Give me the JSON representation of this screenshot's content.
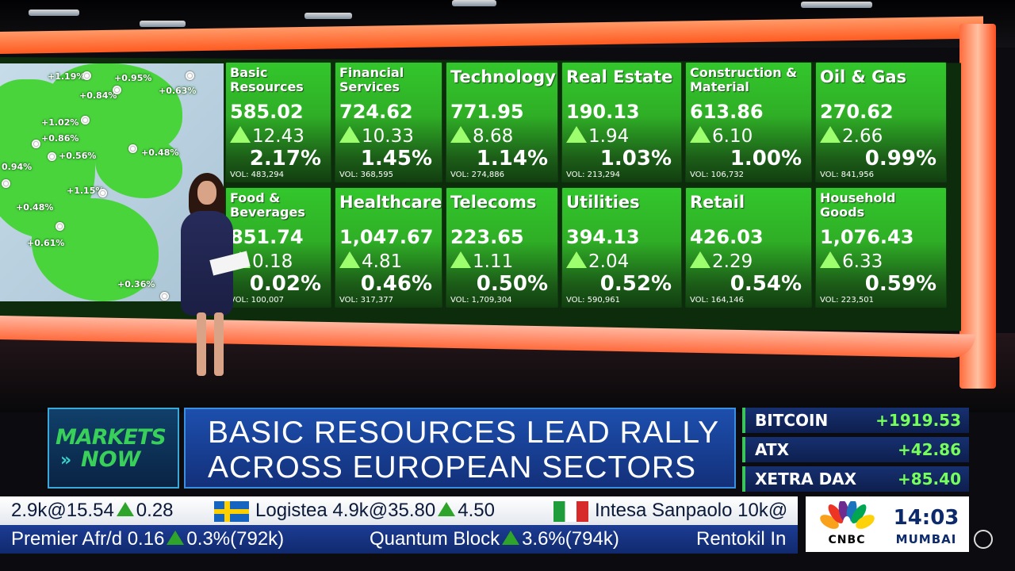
{
  "map_labels": [
    "+1.19%",
    "+0.95%",
    "+0.84%",
    "+0.63%",
    "+1.02%",
    "+0.86%",
    "+0.56%",
    "+0.48%",
    "0.94%",
    "+1.15%",
    "+0.48%",
    "+0.61%",
    "+0.36%"
  ],
  "sectors": [
    {
      "name": "Basic\nResources",
      "price": "585.02",
      "change": "12.43",
      "pct": "2.17%",
      "vol": "VOL: 483,294"
    },
    {
      "name": "Financial\nServices",
      "price": "724.62",
      "change": "10.33",
      "pct": "1.45%",
      "vol": "VOL: 368,595"
    },
    {
      "name": "Technology",
      "price": "771.95",
      "change": "8.68",
      "pct": "1.14%",
      "vol": "VOL: 274,886"
    },
    {
      "name": "Real Estate",
      "price": "190.13",
      "change": "1.94",
      "pct": "1.03%",
      "vol": "VOL: 213,294"
    },
    {
      "name": "Construction &\nMaterial",
      "price": "613.86",
      "change": "6.10",
      "pct": "1.00%",
      "vol": "VOL: 106,732"
    },
    {
      "name": "Oil & Gas",
      "price": "270.62",
      "change": "2.66",
      "pct": "0.99%",
      "vol": "VOL: 841,956"
    },
    {
      "name": "Food &\nBeverages",
      "price": "851.74",
      "change": "0.18",
      "pct": "0.02%",
      "vol": "VOL: 100,007"
    },
    {
      "name": "Healthcare",
      "price": "1,047.67",
      "change": "4.81",
      "pct": "0.46%",
      "vol": "VOL: 317,377"
    },
    {
      "name": "Telecoms",
      "price": "223.65",
      "change": "1.11",
      "pct": "0.50%",
      "vol": "VOL: 1,709,304"
    },
    {
      "name": "Utilities",
      "price": "394.13",
      "change": "2.04",
      "pct": "0.52%",
      "vol": "VOL: 590,961"
    },
    {
      "name": "Retail",
      "price": "426.03",
      "change": "2.29",
      "pct": "0.54%",
      "vol": "VOL: 164,146"
    },
    {
      "name": "Household\nGoods",
      "price": "1,076.43",
      "change": "6.33",
      "pct": "0.59%",
      "vol": "VOL: 223,501"
    }
  ],
  "show": {
    "line1": "MARKETS",
    "line2": "NOW",
    "chevrons": "»"
  },
  "headline": {
    "line1": "BASIC RESOURCES LEAD RALLY",
    "line2": "ACROSS EUROPEAN SECTORS"
  },
  "quotes": [
    {
      "name": "BITCOIN",
      "value": "+1919.53"
    },
    {
      "name": "ATX",
      "value": "+42.86"
    },
    {
      "name": "XETRA DAX",
      "value": "+85.40"
    }
  ],
  "ticker_top": {
    "a_text": "2.9k@15.54",
    "a_chg": "0.28",
    "b_name": "Logistea",
    "b_text": "4.9k@35.80",
    "b_chg": "4.50",
    "c_name": "Intesa Sanpaolo",
    "c_text": "10k@"
  },
  "ticker_bottom": {
    "a_text": "Premier Afr/d 0.16",
    "a_chg": "0.3%(792k)",
    "b_text": "Quantum Block",
    "b_chg": "3.6%(794k)",
    "c_text": "Rentokil In"
  },
  "brand": {
    "network": "CNBC",
    "time": "14:03",
    "city": "MUMBAI"
  },
  "colors": {
    "tile_green": "#33c72c",
    "up_arrow": "#9dff6e",
    "headline_blue": "#1d4fae",
    "quote_green": "#76ff5a",
    "frame_orange": "#ff6a3c"
  }
}
